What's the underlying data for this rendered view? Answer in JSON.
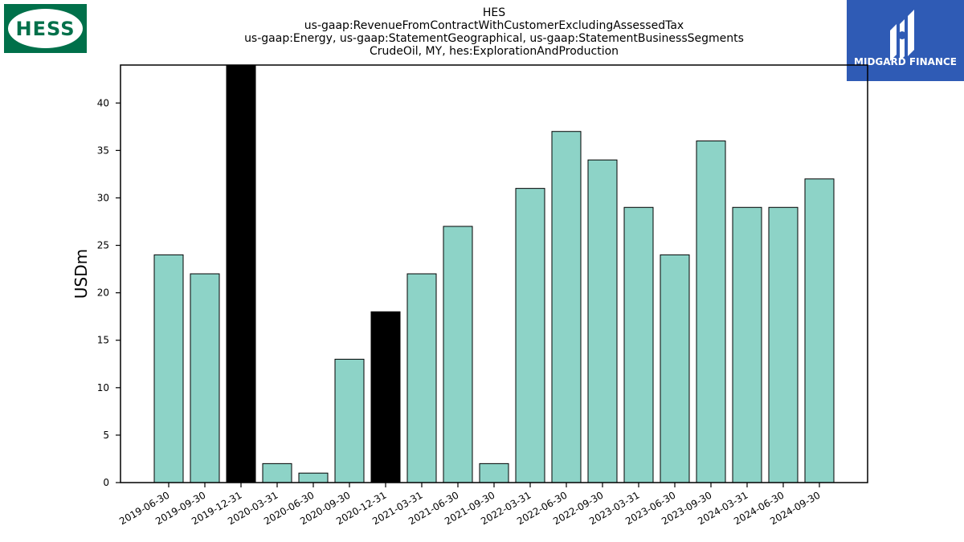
{
  "logos": {
    "left_text": "HESS",
    "right_text": "MIDGARD FINANCE"
  },
  "chart_data": {
    "type": "bar",
    "title_lines": [
      "HES",
      "us-gaap:RevenueFromContractWithCustomerExcludingAssessedTax",
      "us-gaap:Energy, us-gaap:StatementGeographical, us-gaap:StatementBusinessSegments",
      "CrudeOil, MY, hes:ExplorationAndProduction"
    ],
    "xlabel": "",
    "ylabel": "USDm",
    "ylim": [
      0,
      44
    ],
    "yticks": [
      0,
      5,
      10,
      15,
      20,
      25,
      30,
      35,
      40
    ],
    "categories": [
      "2019-06-30",
      "2019-09-30",
      "2019-12-31",
      "2020-03-31",
      "2020-06-30",
      "2020-09-30",
      "2020-12-31",
      "2021-03-31",
      "2021-06-30",
      "2021-09-30",
      "2022-03-31",
      "2022-06-30",
      "2022-09-30",
      "2023-03-31",
      "2023-06-30",
      "2023-09-30",
      "2024-03-31",
      "2024-06-30",
      "2024-09-30"
    ],
    "values": [
      24,
      22,
      44,
      2,
      1,
      13,
      18,
      22,
      27,
      2,
      31,
      37,
      34,
      29,
      24,
      36,
      29,
      29,
      32
    ],
    "highlighted": [
      "2019-12-31",
      "2020-12-31"
    ],
    "colors": {
      "bar": "#8dd3c7",
      "highlight": "#000000",
      "edge": "#000000"
    },
    "grid": false
  }
}
